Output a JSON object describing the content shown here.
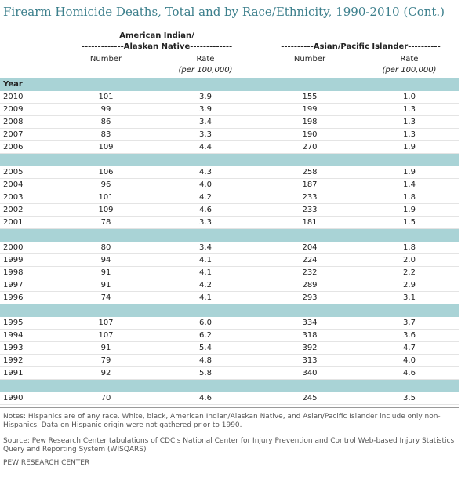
{
  "header": {
    "title": "Firearm Homicide Deaths, Total and by Race/Ethnicity, 1990-2010 (Cont.)"
  },
  "table": {
    "groups": [
      {
        "lines": [
          "American Indian/",
          "-------------Alaskan Native-------------"
        ]
      },
      {
        "lines": [
          "----------Asian/Pacific Islander----------"
        ]
      }
    ],
    "columns": [
      "Number",
      "Rate",
      "(per 100,000)",
      "Number",
      "Rate",
      "(per 100,000)"
    ],
    "year_label": "Year",
    "rows": [
      [
        "2010",
        "101",
        "3.9",
        "155",
        "1.0"
      ],
      [
        "2009",
        "99",
        "3.9",
        "199",
        "1.3"
      ],
      [
        "2008",
        "86",
        "3.4",
        "198",
        "1.3"
      ],
      [
        "2007",
        "83",
        "3.3",
        "190",
        "1.3"
      ],
      [
        "2006",
        "109",
        "4.4",
        "270",
        "1.9"
      ],
      [
        "2005",
        "106",
        "4.3",
        "258",
        "1.9"
      ],
      [
        "2004",
        "96",
        "4.0",
        "187",
        "1.4"
      ],
      [
        "2003",
        "101",
        "4.2",
        "233",
        "1.8"
      ],
      [
        "2002",
        "109",
        "4.6",
        "233",
        "1.9"
      ],
      [
        "2001",
        "78",
        "3.3",
        "181",
        "1.5"
      ],
      [
        "2000",
        "80",
        "3.4",
        "204",
        "1.8"
      ],
      [
        "1999",
        "94",
        "4.1",
        "224",
        "2.0"
      ],
      [
        "1998",
        "91",
        "4.1",
        "232",
        "2.2"
      ],
      [
        "1997",
        "91",
        "4.2",
        "289",
        "2.9"
      ],
      [
        "1996",
        "74",
        "4.1",
        "293",
        "3.1"
      ],
      [
        "1995",
        "107",
        "6.0",
        "334",
        "3.7"
      ],
      [
        "1994",
        "107",
        "6.2",
        "318",
        "3.6"
      ],
      [
        "1993",
        "91",
        "5.4",
        "392",
        "4.7"
      ],
      [
        "1992",
        "79",
        "4.8",
        "313",
        "4.0"
      ],
      [
        "1991",
        "92",
        "5.8",
        "340",
        "4.6"
      ],
      [
        "1990",
        "70",
        "4.6",
        "245",
        "3.5"
      ]
    ]
  },
  "footer": {
    "notes": "Notes: Hispanics are of any race. White, black, American Indian/Alaskan Native, and Asian/Pacific Islander include only non-Hispanics. Data on Hispanic origin were not gathered prior to 1990.",
    "source": "Source: Pew Research Center tabulations of CDC's National Center for Injury Prevention and Control Web-based Injury Statistics Query and Reporting System (WISQARS)",
    "org": "PEW RESEARCH CENTER"
  }
}
